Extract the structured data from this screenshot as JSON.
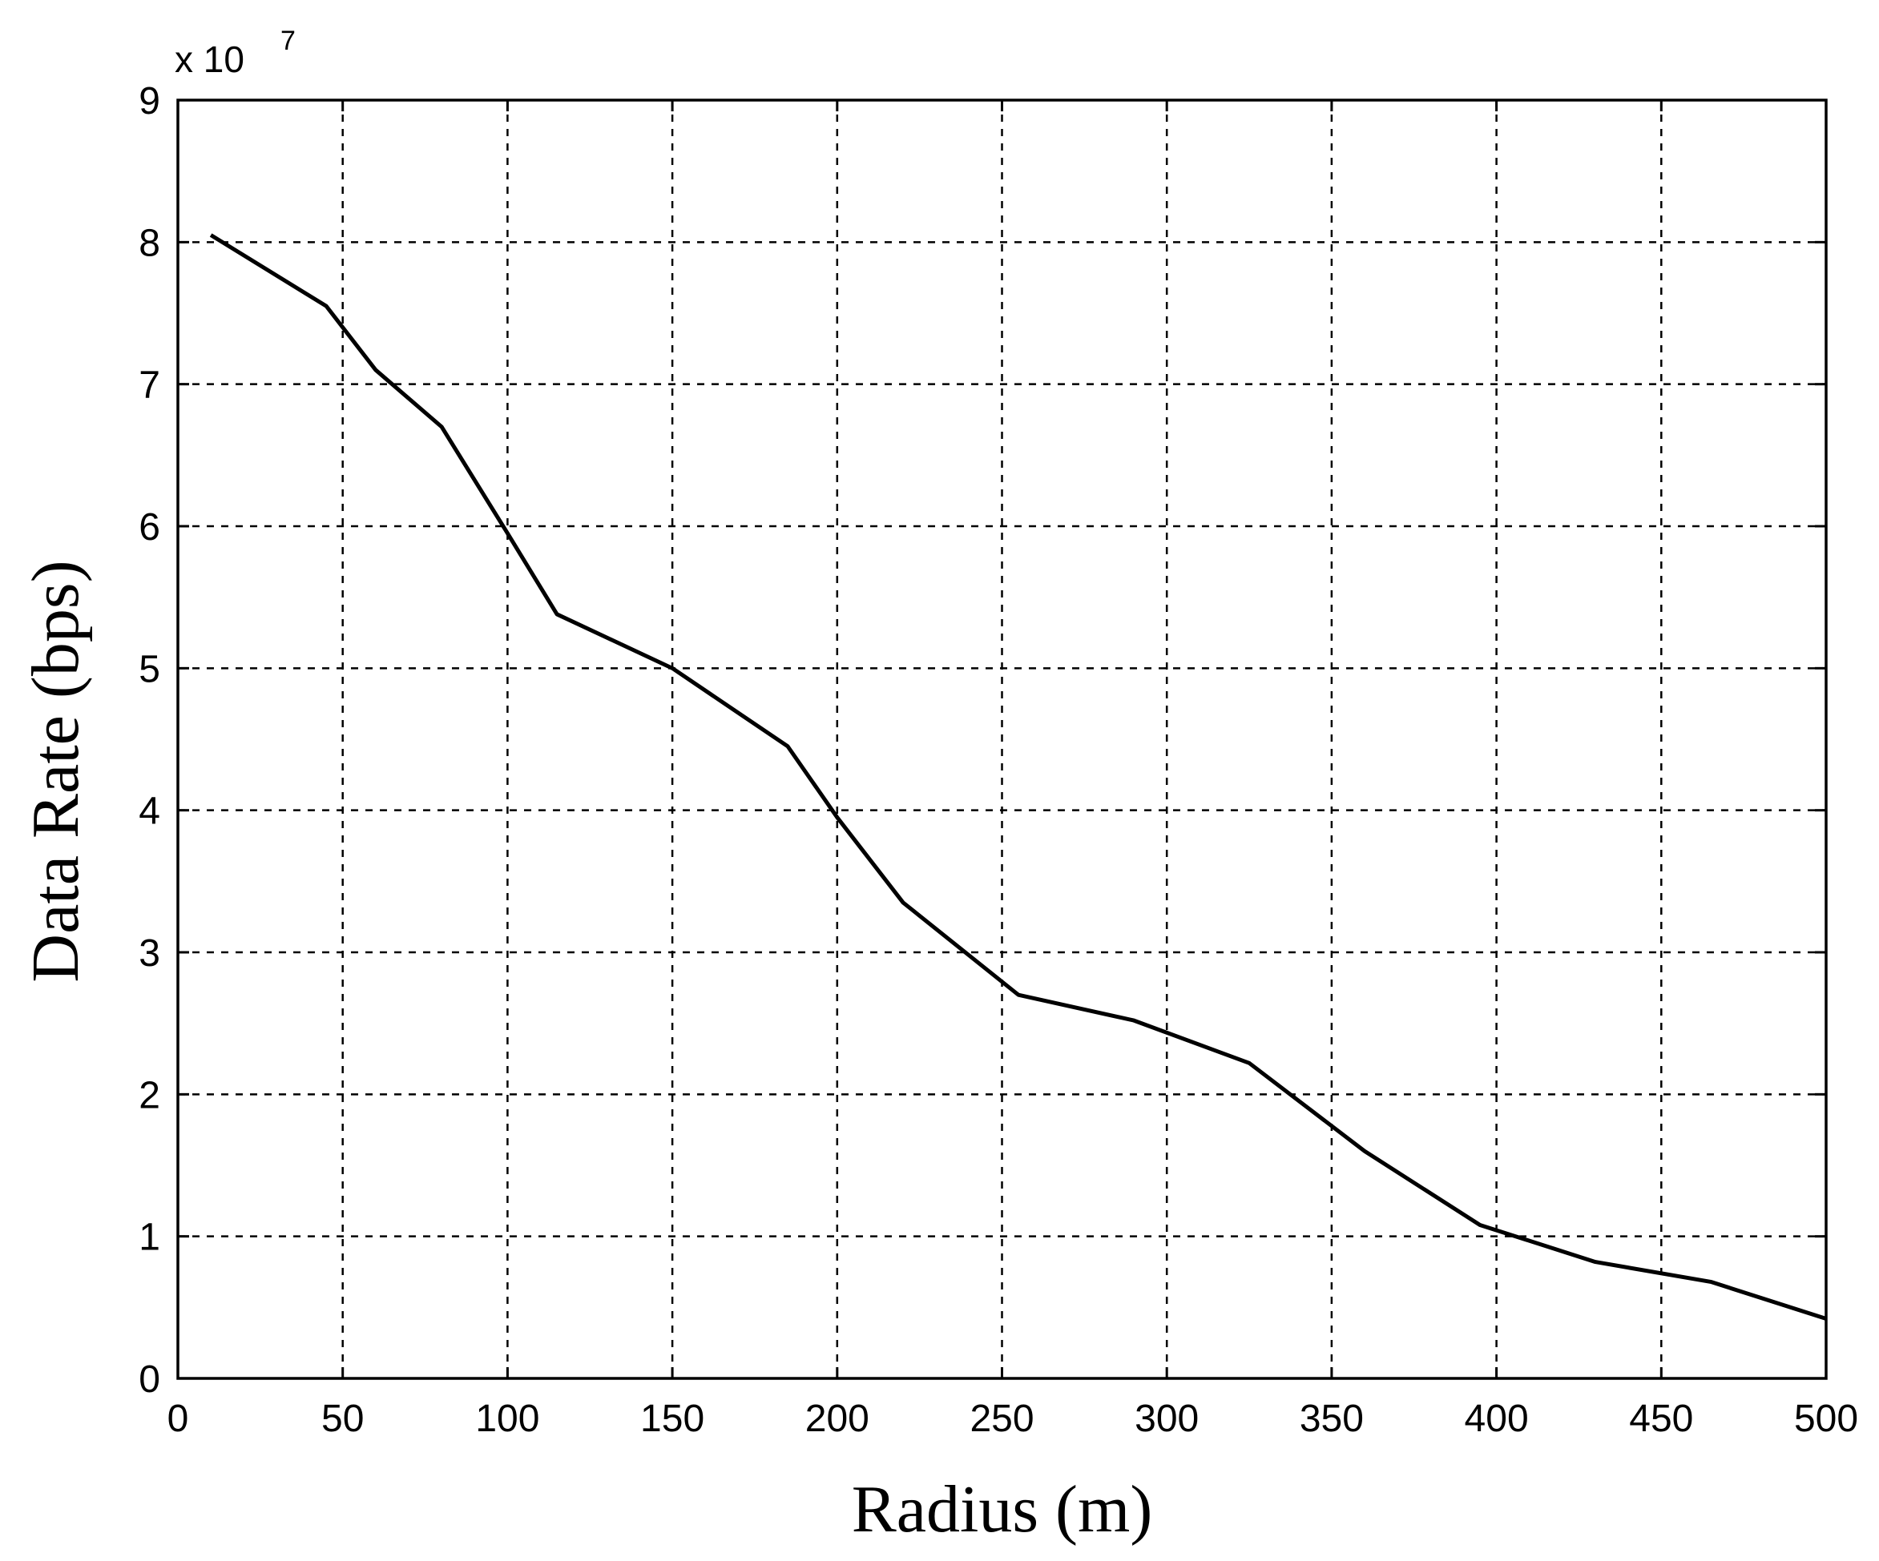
{
  "chart_data": {
    "type": "line",
    "title": "",
    "xlabel": "Radius (m)",
    "ylabel": "Data Rate (bps)",
    "y_exponent_base": "x 10",
    "y_exponent_power": "7",
    "xlim": [
      0,
      500
    ],
    "ylim": [
      0,
      9
    ],
    "x_ticks": [
      0,
      50,
      100,
      150,
      200,
      250,
      300,
      350,
      400,
      450,
      500
    ],
    "y_ticks": [
      0,
      1,
      2,
      3,
      4,
      5,
      6,
      7,
      8,
      9
    ],
    "x_tick_labels": [
      "0",
      "50",
      "100",
      "150",
      "200",
      "250",
      "300",
      "350",
      "400",
      "450",
      "500"
    ],
    "y_tick_labels": [
      "0",
      "1",
      "2",
      "3",
      "4",
      "5",
      "6",
      "7",
      "8",
      "9"
    ],
    "grid": true,
    "legend": "none",
    "series": [
      {
        "color": "#000000",
        "x": [
          10,
          45,
          60,
          80,
          100,
          115,
          150,
          185,
          200,
          220,
          255,
          290,
          325,
          360,
          395,
          430,
          465,
          500
        ],
        "y": [
          8.05,
          7.55,
          7.1,
          6.7,
          5.95,
          5.38,
          5.0,
          4.45,
          3.95,
          3.35,
          2.7,
          2.52,
          2.22,
          1.6,
          1.08,
          0.82,
          0.68,
          0.42
        ]
      }
    ]
  }
}
